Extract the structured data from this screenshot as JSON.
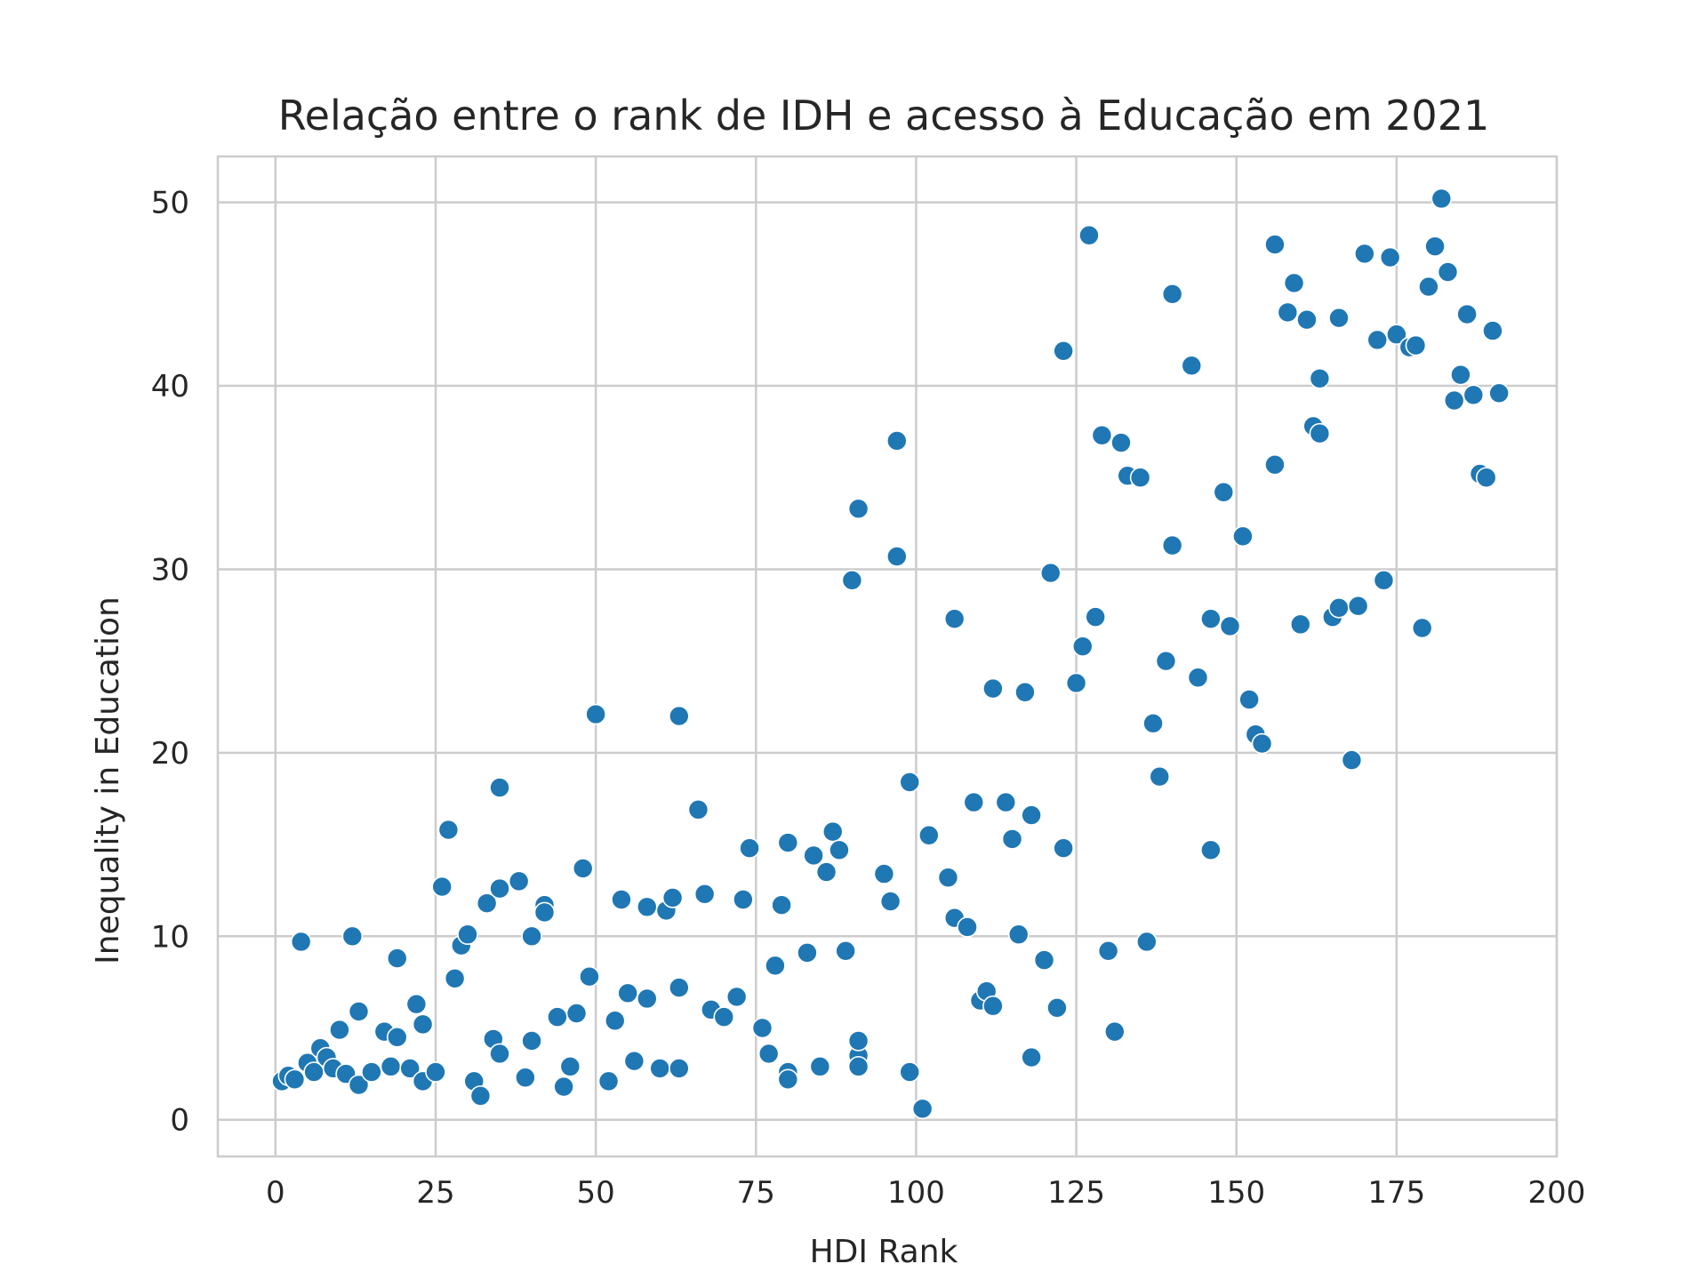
{
  "chart_data": {
    "type": "scatter",
    "title": "Relação entre o rank de IDH e acesso à Educação em 2021",
    "xlabel": "HDI Rank",
    "ylabel": "Inequality in Education",
    "xlim": [
      -9,
      200
    ],
    "ylim": [
      -2,
      52.5
    ],
    "xticks": [
      0,
      25,
      50,
      75,
      100,
      125,
      150,
      175,
      200
    ],
    "yticks": [
      0,
      10,
      20,
      30,
      40,
      50
    ],
    "grid": true,
    "colors": {
      "point": "#1f77b4",
      "point_edge": "#ffffff",
      "grid": "#cccccc",
      "spine": "#cccccc",
      "text": "#262626"
    },
    "points": [
      [
        1,
        2.1
      ],
      [
        2,
        2.4
      ],
      [
        3,
        2.2
      ],
      [
        4,
        9.7
      ],
      [
        5,
        3.1
      ],
      [
        6,
        2.6
      ],
      [
        7,
        3.9
      ],
      [
        8,
        3.4
      ],
      [
        9,
        2.8
      ],
      [
        10,
        4.9
      ],
      [
        11,
        2.5
      ],
      [
        12,
        10.0
      ],
      [
        13,
        5.9
      ],
      [
        13,
        1.9
      ],
      [
        15,
        2.6
      ],
      [
        17,
        4.8
      ],
      [
        18,
        2.9
      ],
      [
        19,
        8.8
      ],
      [
        19,
        4.5
      ],
      [
        21,
        2.8
      ],
      [
        22,
        6.3
      ],
      [
        23,
        5.2
      ],
      [
        23,
        2.1
      ],
      [
        25,
        2.6
      ],
      [
        26,
        12.7
      ],
      [
        27,
        15.8
      ],
      [
        28,
        7.7
      ],
      [
        29,
        9.5
      ],
      [
        30,
        10.1
      ],
      [
        31,
        2.1
      ],
      [
        32,
        1.3
      ],
      [
        33,
        11.8
      ],
      [
        34,
        4.4
      ],
      [
        35,
        3.6
      ],
      [
        35,
        12.6
      ],
      [
        35,
        18.1
      ],
      [
        38,
        13.0
      ],
      [
        39,
        2.3
      ],
      [
        40,
        4.3
      ],
      [
        40,
        10.0
      ],
      [
        42,
        11.7
      ],
      [
        42,
        11.3
      ],
      [
        44,
        5.6
      ],
      [
        45,
        1.8
      ],
      [
        46,
        2.9
      ],
      [
        47,
        5.8
      ],
      [
        48,
        13.7
      ],
      [
        49,
        7.8
      ],
      [
        50,
        22.1
      ],
      [
        52,
        2.1
      ],
      [
        53,
        5.4
      ],
      [
        54,
        12.0
      ],
      [
        55,
        6.9
      ],
      [
        56,
        3.2
      ],
      [
        58,
        11.6
      ],
      [
        58,
        6.6
      ],
      [
        60,
        2.8
      ],
      [
        61,
        11.4
      ],
      [
        62,
        12.1
      ],
      [
        63,
        2.8
      ],
      [
        63,
        22.0
      ],
      [
        63,
        7.2
      ],
      [
        66,
        16.9
      ],
      [
        67,
        12.3
      ],
      [
        68,
        6.0
      ],
      [
        70,
        5.6
      ],
      [
        72,
        6.7
      ],
      [
        73,
        12.0
      ],
      [
        74,
        14.8
      ],
      [
        76,
        5.0
      ],
      [
        77,
        3.6
      ],
      [
        78,
        8.4
      ],
      [
        79,
        11.7
      ],
      [
        80,
        15.1
      ],
      [
        80,
        2.6
      ],
      [
        80,
        2.2
      ],
      [
        83,
        9.1
      ],
      [
        84,
        14.4
      ],
      [
        85,
        2.9
      ],
      [
        86,
        13.5
      ],
      [
        87,
        15.7
      ],
      [
        88,
        14.7
      ],
      [
        89,
        9.2
      ],
      [
        90,
        29.4
      ],
      [
        91,
        33.3
      ],
      [
        91,
        3.5
      ],
      [
        91,
        4.3
      ],
      [
        91,
        2.9
      ],
      [
        95,
        13.4
      ],
      [
        96,
        11.9
      ],
      [
        97,
        37.0
      ],
      [
        97,
        30.7
      ],
      [
        99,
        2.6
      ],
      [
        99,
        18.4
      ],
      [
        101,
        0.6
      ],
      [
        102,
        15.5
      ],
      [
        105,
        13.2
      ],
      [
        106,
        11.0
      ],
      [
        106,
        27.3
      ],
      [
        108,
        10.5
      ],
      [
        109,
        17.3
      ],
      [
        110,
        6.5
      ],
      [
        111,
        7.0
      ],
      [
        112,
        6.2
      ],
      [
        112,
        23.5
      ],
      [
        114,
        17.3
      ],
      [
        115,
        15.3
      ],
      [
        116,
        10.1
      ],
      [
        117,
        23.3
      ],
      [
        118,
        16.6
      ],
      [
        118,
        3.4
      ],
      [
        120,
        8.7
      ],
      [
        121,
        29.8
      ],
      [
        122,
        6.1
      ],
      [
        123,
        41.9
      ],
      [
        123,
        14.8
      ],
      [
        125,
        23.8
      ],
      [
        126,
        25.8
      ],
      [
        127,
        48.2
      ],
      [
        128,
        27.4
      ],
      [
        129,
        37.3
      ],
      [
        130,
        9.2
      ],
      [
        131,
        4.8
      ],
      [
        132,
        36.9
      ],
      [
        133,
        35.1
      ],
      [
        135,
        35.0
      ],
      [
        136,
        9.7
      ],
      [
        137,
        21.6
      ],
      [
        138,
        18.7
      ],
      [
        139,
        25.0
      ],
      [
        140,
        45.0
      ],
      [
        140,
        31.3
      ],
      [
        143,
        41.1
      ],
      [
        144,
        24.1
      ],
      [
        146,
        27.3
      ],
      [
        146,
        14.7
      ],
      [
        148,
        34.2
      ],
      [
        149,
        26.9
      ],
      [
        151,
        31.8
      ],
      [
        152,
        22.9
      ],
      [
        153,
        21.0
      ],
      [
        154,
        20.5
      ],
      [
        156,
        47.7
      ],
      [
        156,
        35.7
      ],
      [
        158,
        44.0
      ],
      [
        159,
        45.6
      ],
      [
        160,
        27.0
      ],
      [
        161,
        43.6
      ],
      [
        162,
        37.8
      ],
      [
        163,
        37.4
      ],
      [
        163,
        40.4
      ],
      [
        165,
        27.4
      ],
      [
        166,
        43.7
      ],
      [
        166,
        27.9
      ],
      [
        168,
        19.6
      ],
      [
        169,
        28.0
      ],
      [
        170,
        47.2
      ],
      [
        172,
        42.5
      ],
      [
        173,
        29.4
      ],
      [
        174,
        47.0
      ],
      [
        175,
        42.8
      ],
      [
        177,
        42.1
      ],
      [
        178,
        42.2
      ],
      [
        179,
        26.8
      ],
      [
        180,
        45.4
      ],
      [
        181,
        47.6
      ],
      [
        182,
        50.2
      ],
      [
        183,
        46.2
      ],
      [
        184,
        39.2
      ],
      [
        185,
        40.6
      ],
      [
        186,
        43.9
      ],
      [
        187,
        39.5
      ],
      [
        188,
        35.2
      ],
      [
        189,
        35.0
      ],
      [
        190,
        43.0
      ],
      [
        191,
        39.6
      ]
    ]
  }
}
